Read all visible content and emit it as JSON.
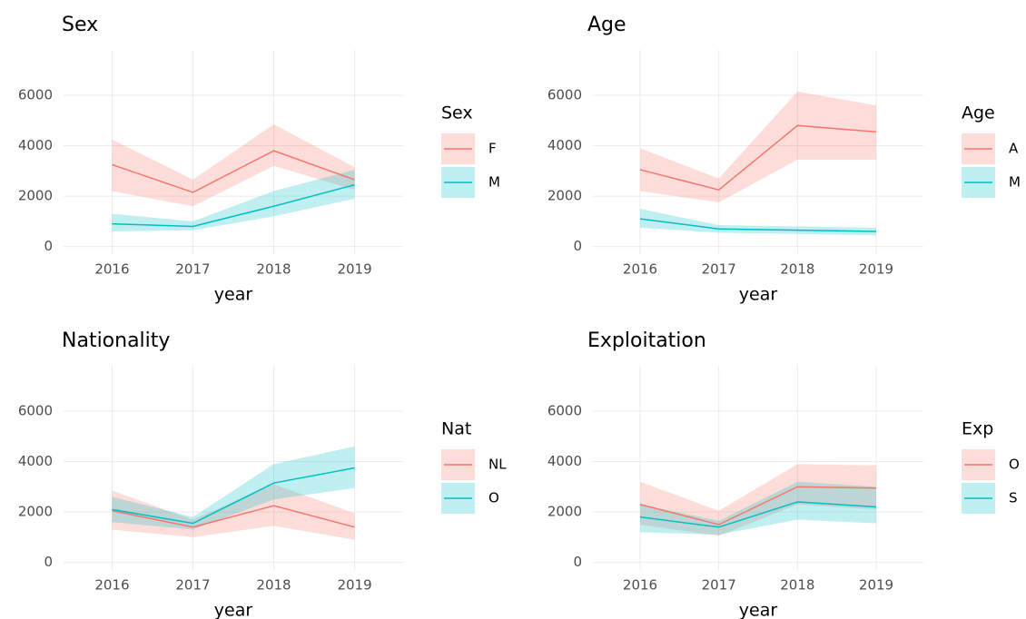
{
  "chart_data": [
    {
      "type": "line",
      "title": "Sex",
      "x_label": "year",
      "legend_title": "Sex",
      "x": [
        2016,
        2017,
        2018,
        2019
      ],
      "xlim": [
        2015.4,
        2019.6
      ],
      "xticks": [
        2016,
        2017,
        2018,
        2019
      ],
      "ylim": [
        -300,
        7800
      ],
      "yticks": [
        0,
        2000,
        4000,
        6000
      ],
      "grid": true,
      "series": [
        {
          "name": "F",
          "color": "#F8766D",
          "values": [
            3250,
            2150,
            3800,
            2650
          ],
          "lower": [
            2200,
            1600,
            3200,
            2250
          ],
          "upper": [
            4250,
            2650,
            4850,
            3150
          ]
        },
        {
          "name": "M",
          "color": "#00BFC4",
          "values": [
            900,
            800,
            1600,
            2450
          ],
          "lower": [
            600,
            650,
            1200,
            1900
          ],
          "upper": [
            1300,
            1000,
            2200,
            3050
          ]
        }
      ]
    },
    {
      "type": "line",
      "title": "Age",
      "x_label": "year",
      "legend_title": "Age",
      "x": [
        2016,
        2017,
        2018,
        2019
      ],
      "xlim": [
        2015.4,
        2019.6
      ],
      "xticks": [
        2016,
        2017,
        2018,
        2019
      ],
      "ylim": [
        -300,
        7800
      ],
      "yticks": [
        0,
        2000,
        4000,
        6000
      ],
      "grid": true,
      "series": [
        {
          "name": "A",
          "color": "#F8766D",
          "values": [
            3050,
            2250,
            4800,
            4550
          ],
          "lower": [
            2200,
            1750,
            3450,
            3450
          ],
          "upper": [
            3900,
            2700,
            6150,
            5600
          ]
        },
        {
          "name": "M",
          "color": "#00BFC4",
          "values": [
            1100,
            700,
            650,
            600
          ],
          "lower": [
            750,
            550,
            500,
            450
          ],
          "upper": [
            1500,
            850,
            800,
            750
          ]
        }
      ]
    },
    {
      "type": "line",
      "title": "Nationality",
      "x_label": "year",
      "legend_title": "Nat",
      "x": [
        2016,
        2017,
        2018,
        2019
      ],
      "xlim": [
        2015.4,
        2019.6
      ],
      "xticks": [
        2016,
        2017,
        2018,
        2019
      ],
      "ylim": [
        -300,
        7800
      ],
      "yticks": [
        0,
        2000,
        4000,
        6000
      ],
      "grid": true,
      "series": [
        {
          "name": "NL",
          "color": "#F8766D",
          "values": [
            2050,
            1400,
            2250,
            1400
          ],
          "lower": [
            1300,
            1000,
            1450,
            900
          ],
          "upper": [
            2850,
            1700,
            3100,
            1950
          ]
        },
        {
          "name": "O",
          "color": "#00BFC4",
          "values": [
            2100,
            1550,
            3150,
            3750
          ],
          "lower": [
            1600,
            1300,
            2500,
            2950
          ],
          "upper": [
            2600,
            1800,
            3900,
            4600
          ]
        }
      ]
    },
    {
      "type": "line",
      "title": "Exploitation",
      "x_label": "year",
      "legend_title": "Exp",
      "x": [
        2016,
        2017,
        2018,
        2019
      ],
      "xlim": [
        2015.4,
        2019.6
      ],
      "xticks": [
        2016,
        2017,
        2018,
        2019
      ],
      "ylim": [
        -300,
        7800
      ],
      "yticks": [
        0,
        2000,
        4000,
        6000
      ],
      "grid": true,
      "series": [
        {
          "name": "O",
          "color": "#F8766D",
          "values": [
            2300,
            1500,
            3000,
            2950
          ],
          "lower": [
            1500,
            1050,
            2300,
            2100
          ],
          "upper": [
            3200,
            2050,
            3900,
            3850
          ]
        },
        {
          "name": "S",
          "color": "#00BFC4",
          "values": [
            1800,
            1400,
            2400,
            2200
          ],
          "lower": [
            1200,
            1100,
            1700,
            1550
          ],
          "upper": [
            2300,
            1650,
            3200,
            3000
          ]
        }
      ]
    }
  ]
}
